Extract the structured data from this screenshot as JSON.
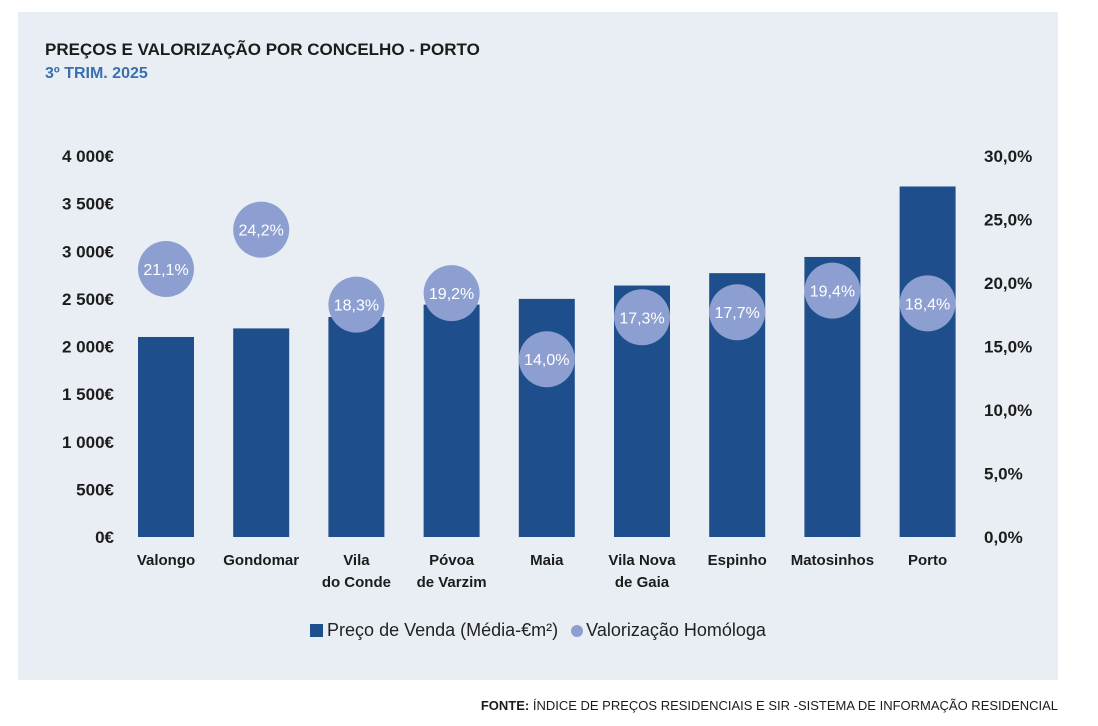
{
  "title": "PREÇOS E VALORIZAÇÃO POR CONCELHO - PORTO",
  "subtitle": "3º TRIM. 2025",
  "source": {
    "label": "FONTE:",
    "text": "ÍNDICE DE PREÇOS RESIDENCIAIS E SIR -SISTEMA DE INFORMAÇÃO RESIDENCIAL"
  },
  "colors": {
    "bar": "#1f4e8c",
    "dot": "#8c9fd0",
    "panel": "#e9eef4",
    "subtitle": "#3a6fb0"
  },
  "chart_data": {
    "type": "bar",
    "categories": [
      "Valongo",
      "Gondomar",
      "Vila do Conde",
      "Póvoa de Varzim",
      "Maia",
      "Vila Nova de Gaia",
      "Espinho",
      "Matosinhos",
      "Porto"
    ],
    "category_labels": [
      [
        "Valongo"
      ],
      [
        "Gondomar"
      ],
      [
        "Vila",
        "do Conde"
      ],
      [
        "Póvoa",
        "de Varzim"
      ],
      [
        "Maia"
      ],
      [
        "Vila Nova",
        "de Gaia"
      ],
      [
        "Espinho"
      ],
      [
        "Matosinhos"
      ],
      [
        "Porto"
      ]
    ],
    "series": [
      {
        "name": "Preço de Venda (Média-€m²)",
        "type": "bar",
        "axis": "left",
        "values": [
          2100,
          2190,
          2310,
          2440,
          2500,
          2640,
          2770,
          2940,
          3680
        ]
      },
      {
        "name": "Valorização Homóloga",
        "type": "scatter",
        "axis": "right",
        "values": [
          21.1,
          24.2,
          18.3,
          19.2,
          14.0,
          17.3,
          17.7,
          19.4,
          18.4
        ],
        "labels": [
          "21,1%",
          "24,2%",
          "18,3%",
          "19,2%",
          "14,0%",
          "17,3%",
          "17,7%",
          "19,4%",
          "18,4%"
        ]
      }
    ],
    "y_left": {
      "range": [
        0,
        4000
      ],
      "ticks": [
        0,
        500,
        1000,
        1500,
        2000,
        2500,
        3000,
        3500,
        4000
      ],
      "tick_labels": [
        "0€",
        "500€",
        "1 000€",
        "1 500€",
        "2 000€",
        "2 500€",
        "3 000€",
        "3 500€",
        "4 000€"
      ]
    },
    "y_right": {
      "range": [
        0,
        30
      ],
      "ticks": [
        0,
        5,
        10,
        15,
        20,
        25,
        30
      ],
      "tick_labels": [
        "0,0%",
        "5,0%",
        "10,0%",
        "15,0%",
        "20,0%",
        "25,0%",
        "30,0%"
      ]
    },
    "legend_position": "bottom",
    "grid": false
  }
}
